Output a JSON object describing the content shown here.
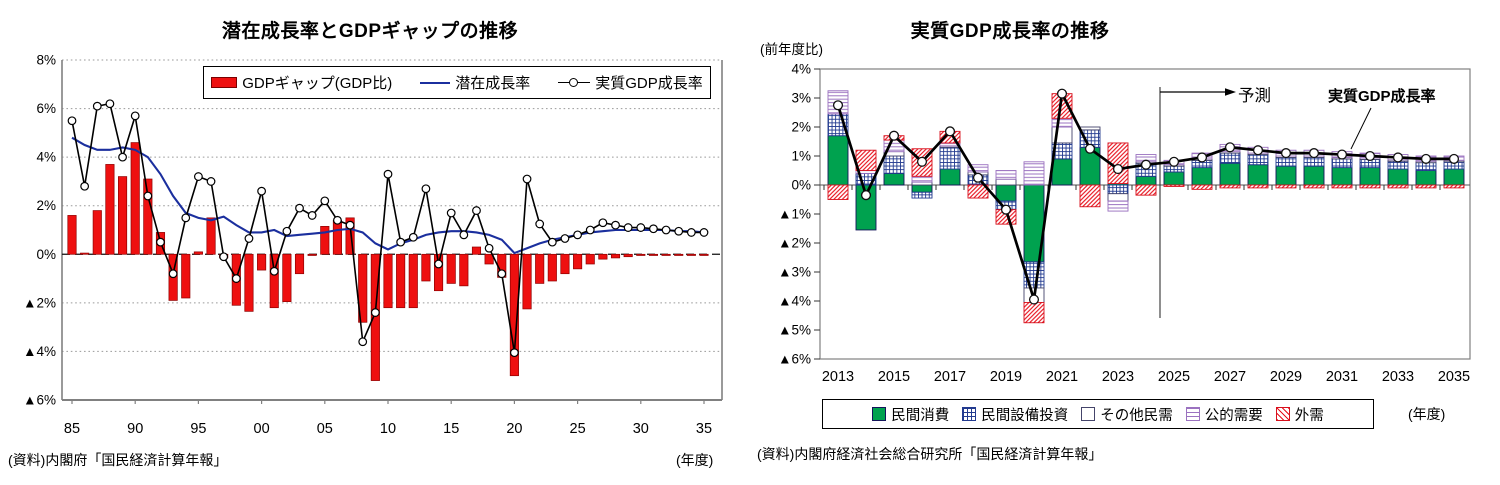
{
  "page": {
    "background": "#ffffff"
  },
  "left_chart": {
    "title": "潜在成長率とGDPギャップの推移",
    "source": "(資料)内閣府「国民経済計算年報」",
    "unit_label": "(年度)",
    "legend": [
      {
        "label": "GDPギャップ(GDP比)",
        "swatch": "red-bar"
      },
      {
        "label": "潜在成長率",
        "swatch": "blue-line"
      },
      {
        "label": "実質GDP成長率",
        "swatch": "black-circle-line"
      }
    ],
    "colors": {
      "bar": "#ee1010",
      "bar_border": "#8f0000",
      "potential_line": "#1b2f9e",
      "real_line": "#000000",
      "grid": "#9a9a9a",
      "frame": "#808080"
    }
  },
  "right_chart": {
    "title": "実質GDP成長率の推移",
    "axis_note": "(前年度比)",
    "forecast_label": "予測",
    "line_label": "実質GDP成長率",
    "source": "(資料)内閣府経済社会総合研究所「国民経済計算年報」",
    "unit_label": "(年度)",
    "legend": [
      {
        "label": "民間消費",
        "swatch": "green"
      },
      {
        "label": "民間設備投資",
        "swatch": "grid"
      },
      {
        "label": "その他民需",
        "swatch": "white"
      },
      {
        "label": "公的需要",
        "swatch": "hlines"
      },
      {
        "label": "外需",
        "swatch": "hatch"
      }
    ],
    "colors": {
      "consumption": "#00a24f",
      "investment_grid": "#223a8f",
      "public_lines": "#9b72c0",
      "external_hatch": "#e8101c",
      "line": "#000000",
      "frame": "#808080"
    }
  },
  "chart_data": [
    {
      "id": "left",
      "type": "bar",
      "title": "潜在成長率とGDPギャップの推移",
      "x_start": 1985,
      "x_end": 2035,
      "x_tick_years": [
        1985,
        1990,
        1995,
        2000,
        2005,
        2010,
        2015,
        2020,
        2025,
        2030,
        2035
      ],
      "x_tick_labels": [
        "85",
        "90",
        "95",
        "00",
        "05",
        "10",
        "15",
        "20",
        "25",
        "30",
        "35"
      ],
      "y_ticks": [
        8,
        6,
        4,
        2,
        0,
        -2,
        -4,
        -6
      ],
      "ylim": [
        -6,
        8
      ],
      "unit": "%",
      "grid": true,
      "legend_position": "top",
      "series": [
        {
          "name": "GDPギャップ(GDP比)",
          "type": "bar",
          "color": "#ee1010",
          "values": [
            1.6,
            0.05,
            1.8,
            3.7,
            3.2,
            4.6,
            3.1,
            0.9,
            -1.9,
            -1.8,
            0.1,
            1.5,
            -0.15,
            -2.1,
            -2.35,
            -0.65,
            -2.2,
            -1.95,
            -0.8,
            -0.05,
            1.15,
            1.4,
            1.5,
            -2.8,
            -5.2,
            -2.2,
            -2.2,
            -2.2,
            -1.1,
            -1.5,
            -1.2,
            -1.3,
            0.3,
            -0.4,
            -0.95,
            -5.0,
            -2.25,
            -1.2,
            -1.1,
            -0.8,
            -0.6,
            -0.4,
            -0.2,
            -0.15,
            -0.1,
            -0.05,
            -0.05,
            -0.05,
            -0.05,
            -0.05,
            -0.05
          ]
        },
        {
          "name": "潜在成長率",
          "type": "line",
          "color": "#1b2f9e",
          "values": [
            4.8,
            4.5,
            4.3,
            4.3,
            4.4,
            4.3,
            4.0,
            3.3,
            2.4,
            1.7,
            1.5,
            1.4,
            1.55,
            1.2,
            0.9,
            0.9,
            1.0,
            0.75,
            0.8,
            0.85,
            0.9,
            1.0,
            1.05,
            0.9,
            0.45,
            0.2,
            0.45,
            0.6,
            0.8,
            0.9,
            0.95,
            0.95,
            0.9,
            0.8,
            0.6,
            0.05,
            0.25,
            0.45,
            0.6,
            0.7,
            0.8,
            0.9,
            0.95,
            1.0,
            1.0,
            1.0,
            1.0,
            1.0,
            0.95,
            0.95,
            0.9
          ]
        },
        {
          "name": "実質GDP成長率",
          "type": "line-marker",
          "color": "#000000",
          "values": [
            5.5,
            2.8,
            6.1,
            6.2,
            4.0,
            5.7,
            2.4,
            0.5,
            -0.8,
            1.5,
            3.2,
            3.0,
            -0.1,
            -1.0,
            0.65,
            2.6,
            -0.7,
            0.95,
            1.9,
            1.6,
            2.2,
            1.4,
            1.2,
            -3.6,
            -2.4,
            3.3,
            0.5,
            0.7,
            2.7,
            -0.4,
            1.7,
            0.8,
            1.8,
            0.25,
            -0.8,
            -4.05,
            3.1,
            1.25,
            0.5,
            0.65,
            0.8,
            1.0,
            1.3,
            1.2,
            1.1,
            1.1,
            1.05,
            1.0,
            0.95,
            0.9,
            0.9
          ]
        }
      ]
    },
    {
      "id": "right",
      "type": "bar",
      "subtype": "stacked-bar-with-line",
      "title": "実質GDP成長率の推移",
      "x_start": 2013,
      "x_end": 2035,
      "x_tick_years": [
        2013,
        2015,
        2017,
        2019,
        2021,
        2023,
        2025,
        2027,
        2029,
        2031,
        2033,
        2035
      ],
      "x_tick_labels": [
        "2013",
        "2015",
        "2017",
        "2019",
        "2021",
        "2023",
        "2025",
        "2027",
        "2029",
        "2031",
        "2033",
        "2035"
      ],
      "y_ticks": [
        4,
        3,
        2,
        1,
        0,
        -1,
        -2,
        -3,
        -4,
        -5,
        -6
      ],
      "ylim": [
        -6,
        4
      ],
      "unit": "%",
      "grid": false,
      "forecast_boundary": 2024.5,
      "series": [
        {
          "name": "民間消費",
          "pattern": "green-solid",
          "values": [
            1.7,
            -1.55,
            0.4,
            -0.25,
            0.55,
            0.0,
            -0.55,
            -2.65,
            0.9,
            1.3,
            0.05,
            0.3,
            0.45,
            0.6,
            0.75,
            0.7,
            0.65,
            0.65,
            0.6,
            0.6,
            0.55,
            0.5,
            0.55
          ]
        },
        {
          "name": "民間設備投資",
          "pattern": "navy-grid",
          "values": [
            0.75,
            0.4,
            0.6,
            -0.2,
            0.75,
            0.35,
            -0.3,
            -0.9,
            0.55,
            0.6,
            -0.3,
            0.45,
            0.2,
            0.25,
            0.35,
            0.35,
            0.3,
            0.3,
            0.3,
            0.28,
            0.27,
            0.27,
            0.25
          ]
        },
        {
          "name": "その他民需",
          "pattern": "white",
          "values": [
            0.0,
            0.0,
            0.15,
            0.1,
            0.05,
            0.1,
            0.2,
            -0.5,
            0.55,
            0.1,
            -0.25,
            0.05,
            0.05,
            0.05,
            0.05,
            0.05,
            0.05,
            0.05,
            0.05,
            0.05,
            0.05,
            0.05,
            0.05
          ]
        },
        {
          "name": "公的需要",
          "pattern": "purple-hlines",
          "values": [
            0.8,
            0.1,
            0.4,
            0.2,
            0.1,
            0.25,
            0.3,
            0.8,
            0.3,
            0.0,
            -0.35,
            0.25,
            0.15,
            0.2,
            0.25,
            0.2,
            0.2,
            0.2,
            0.2,
            0.17,
            0.18,
            0.18,
            0.15
          ]
        },
        {
          "name": "外需",
          "pattern": "red-hatch",
          "values": [
            -0.5,
            0.7,
            0.15,
            0.95,
            0.4,
            -0.45,
            -0.5,
            -0.7,
            0.85,
            -0.75,
            1.4,
            -0.35,
            -0.05,
            -0.15,
            -0.1,
            -0.1,
            -0.1,
            -0.1,
            -0.1,
            -0.1,
            -0.1,
            -0.1,
            -0.1
          ]
        }
      ],
      "line": {
        "name": "実質GDP成長率",
        "color": "#000000",
        "values": [
          2.75,
          -0.35,
          1.7,
          0.8,
          1.85,
          0.25,
          -0.85,
          -3.95,
          3.15,
          1.25,
          0.55,
          0.7,
          0.8,
          0.95,
          1.3,
          1.2,
          1.1,
          1.1,
          1.05,
          1.0,
          0.95,
          0.9,
          0.9
        ]
      }
    }
  ]
}
